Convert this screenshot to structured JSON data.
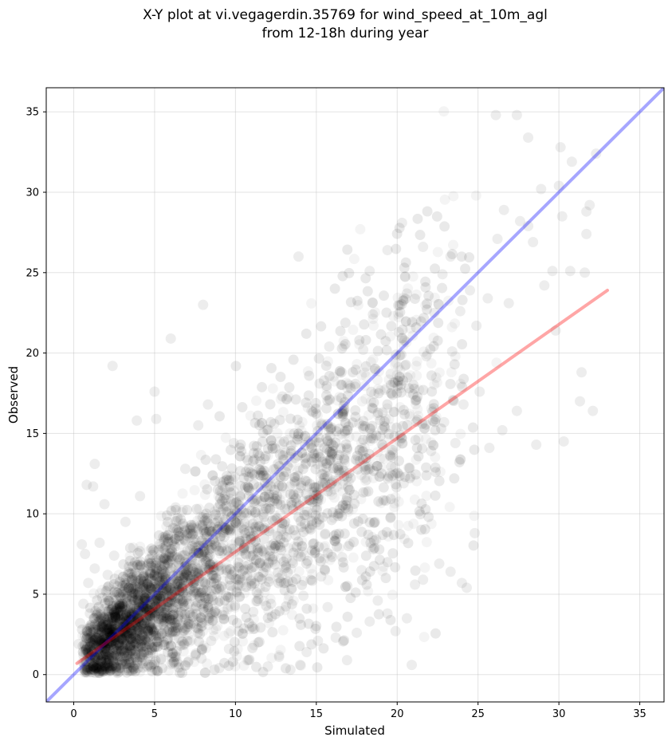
{
  "title": {
    "line1": "X-Y plot at vi.vegagerdin.35769 for wind_speed_at_10m_agl",
    "line2": "from 12-18h during year"
  },
  "chart_data": {
    "type": "scatter",
    "xlabel": "Simulated",
    "ylabel": "Observed",
    "xlim": [
      -1.7,
      36.5
    ],
    "ylim": [
      -1.7,
      36.5
    ],
    "xticks": [
      0,
      5,
      10,
      15,
      20,
      25,
      30,
      35
    ],
    "yticks": [
      0,
      5,
      10,
      15,
      20,
      25,
      30,
      35
    ],
    "grid": true,
    "point_color": "#000000",
    "point_alpha": 0.06,
    "density_note": "",
    "series": [
      {
        "kind": "points",
        "color": "#000000",
        "points": [
          [
            1.2,
            0.5
          ],
          [
            1.5,
            1.1
          ],
          [
            0.8,
            0.3
          ],
          [
            2.0,
            1.6
          ],
          [
            2.4,
            0.9
          ],
          [
            3.1,
            2.0
          ],
          [
            1.7,
            2.6
          ],
          [
            0.6,
            1.2
          ],
          [
            2.8,
            3.3
          ],
          [
            3.5,
            1.4
          ],
          [
            4.2,
            2.8
          ],
          [
            1.0,
            3.8
          ],
          [
            2.2,
            4.6
          ],
          [
            0.9,
            5.7
          ],
          [
            1.3,
            6.6
          ],
          [
            0.7,
            7.5
          ],
          [
            1.6,
            8.2
          ],
          [
            0.5,
            8.1
          ],
          [
            2.5,
            7.4
          ],
          [
            1.9,
            10.6
          ],
          [
            1.2,
            11.7
          ],
          [
            0.8,
            11.8
          ],
          [
            1.3,
            13.1
          ],
          [
            2.4,
            19.2
          ],
          [
            3.9,
            15.8
          ],
          [
            5.0,
            17.6
          ],
          [
            5.1,
            15.9
          ],
          [
            6.0,
            20.9
          ],
          [
            8.0,
            23.0
          ],
          [
            7.7,
            15.5
          ],
          [
            8.3,
            16.8
          ],
          [
            3.2,
            9.5
          ],
          [
            4.1,
            11.1
          ],
          [
            4.8,
            6.3
          ],
          [
            5.6,
            8.4
          ],
          [
            6.3,
            10.4
          ],
          [
            6.9,
            12.8
          ],
          [
            7.4,
            5.2
          ],
          [
            8.1,
            7.6
          ],
          [
            8.8,
            9.9
          ],
          [
            9.4,
            12.1
          ],
          [
            9.9,
            14.4
          ],
          [
            10.6,
            8.1
          ],
          [
            11.2,
            10.8
          ],
          [
            11.8,
            13.4
          ],
          [
            12.4,
            15.6
          ],
          [
            12.9,
            17.3
          ],
          [
            13.6,
            11.2
          ],
          [
            14.1,
            13.8
          ],
          [
            14.7,
            16.4
          ],
          [
            15.2,
            18.1
          ],
          [
            15.8,
            20.4
          ],
          [
            16.4,
            12.6
          ],
          [
            16.9,
            15.2
          ],
          [
            17.4,
            17.9
          ],
          [
            17.9,
            20.2
          ],
          [
            18.5,
            22.4
          ],
          [
            19.1,
            16.3
          ],
          [
            19.6,
            18.7
          ],
          [
            20.1,
            21.3
          ],
          [
            20.6,
            23.7
          ],
          [
            21.2,
            17.1
          ],
          [
            21.8,
            19.8
          ],
          [
            22.3,
            22.5
          ],
          [
            22.8,
            24.9
          ],
          [
            23.4,
            20.1
          ],
          [
            23.9,
            22.6
          ],
          [
            24.5,
            23.9
          ],
          [
            24.9,
            21.7
          ],
          [
            25.6,
            23.4
          ],
          [
            13.9,
            26.0
          ],
          [
            18.3,
            25.1
          ],
          [
            19.4,
            26.4
          ],
          [
            20.3,
            28.1
          ],
          [
            21.6,
            26.6
          ],
          [
            23.3,
            26.0
          ],
          [
            26.1,
            34.8
          ],
          [
            27.4,
            34.8
          ],
          [
            28.1,
            33.4
          ],
          [
            30.1,
            32.8
          ],
          [
            30.8,
            31.9
          ],
          [
            32.3,
            32.4
          ],
          [
            31.9,
            29.2
          ],
          [
            31.7,
            28.8
          ],
          [
            30.0,
            30.4
          ],
          [
            28.9,
            30.2
          ],
          [
            28.1,
            27.9
          ],
          [
            27.6,
            28.2
          ],
          [
            26.6,
            28.9
          ],
          [
            26.2,
            27.1
          ],
          [
            29.6,
            25.1
          ],
          [
            30.7,
            25.1
          ],
          [
            31.6,
            25.0
          ],
          [
            30.2,
            28.5
          ],
          [
            31.7,
            27.4
          ],
          [
            28.4,
            26.9
          ],
          [
            26.9,
            23.1
          ],
          [
            29.1,
            24.2
          ],
          [
            29.8,
            21.4
          ],
          [
            30.3,
            14.5
          ],
          [
            31.4,
            18.8
          ],
          [
            31.3,
            17.0
          ],
          [
            32.1,
            16.4
          ],
          [
            28.6,
            14.3
          ],
          [
            27.4,
            16.4
          ],
          [
            26.5,
            15.2
          ],
          [
            25.7,
            14.1
          ],
          [
            25.1,
            17.6
          ],
          [
            24.8,
            8.8
          ],
          [
            24.3,
            5.4
          ],
          [
            24.0,
            5.7
          ],
          [
            23.3,
            6.4
          ],
          [
            22.6,
            6.9
          ],
          [
            21.6,
            5.9
          ],
          [
            21.1,
            5.6
          ],
          [
            20.9,
            0.6
          ],
          [
            20.6,
            3.5
          ],
          [
            19.9,
            2.7
          ],
          [
            19.4,
            3.8
          ],
          [
            18.8,
            4.6
          ],
          [
            18.3,
            3.3
          ],
          [
            17.5,
            2.6
          ],
          [
            16.9,
            0.9
          ],
          [
            16.2,
            2.3
          ],
          [
            15.7,
            4.2
          ],
          [
            15.1,
            2.1
          ],
          [
            14.4,
            1.4
          ],
          [
            14.0,
            0.6
          ],
          [
            13.4,
            0.3
          ],
          [
            12.7,
            1.1
          ],
          [
            12.0,
            0.5
          ],
          [
            11.4,
            2.0
          ],
          [
            10.8,
            0.9
          ],
          [
            10.2,
            2.7
          ],
          [
            9.6,
            1.6
          ],
          [
            9.0,
            0.4
          ],
          [
            8.5,
            2.1
          ],
          [
            7.9,
            1.0
          ],
          [
            7.2,
            3.1
          ],
          [
            6.6,
            1.8
          ],
          [
            6.1,
            0.7
          ],
          [
            5.5,
            3.6
          ],
          [
            4.9,
            1.3
          ],
          [
            4.4,
            4.6
          ],
          [
            3.8,
            0.2
          ],
          [
            3.3,
            5.1
          ],
          [
            2.7,
            0.1
          ],
          [
            2.1,
            6.2
          ],
          [
            1.6,
            0.1
          ],
          [
            0.4,
            3.2
          ],
          [
            0.3,
            1.9
          ],
          [
            0.6,
            4.4
          ],
          [
            22.1,
            13.9
          ],
          [
            22.9,
            15.7
          ],
          [
            23.6,
            14.4
          ],
          [
            24.1,
            16.8
          ],
          [
            20.4,
            11.9
          ],
          [
            19.6,
            9.8
          ],
          [
            18.7,
            8.4
          ],
          [
            17.8,
            6.5
          ],
          [
            16.6,
            7.3
          ],
          [
            15.3,
            6.1
          ],
          [
            14.2,
            4.9
          ],
          [
            13.1,
            5.7
          ],
          [
            12.2,
            4.4
          ],
          [
            11.1,
            3.9
          ],
          [
            10.1,
            5.1
          ],
          [
            9.2,
            3.7
          ],
          [
            8.3,
            4.7
          ],
          [
            7.6,
            6.1
          ],
          [
            6.8,
            4.2
          ],
          [
            6.2,
            5.9
          ]
        ]
      },
      {
        "kind": "line",
        "name": "",
        "color": "#0000ff",
        "alpha": 0.35,
        "x": [
          -1.7,
          36.5
        ],
        "y": [
          -1.7,
          36.5
        ]
      },
      {
        "kind": "line",
        "name": "",
        "color": "#ff0000",
        "alpha": 0.35,
        "x": [
          0.2,
          33.0
        ],
        "y": [
          0.7,
          23.9
        ]
      }
    ]
  }
}
